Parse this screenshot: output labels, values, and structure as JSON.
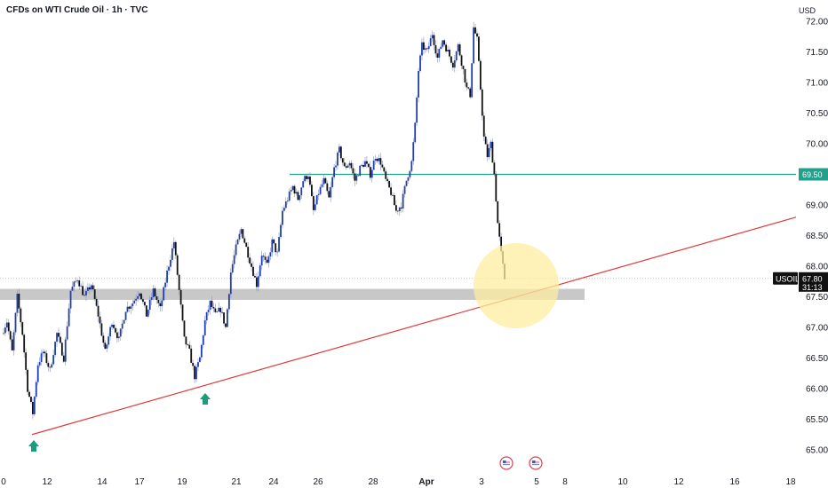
{
  "header": {
    "title": "CFDs on WTI Crude Oil · 1h · TVC",
    "currency": "USD"
  },
  "colors": {
    "candle_up": "#1f3fb0",
    "candle_down": "#111111",
    "trendline": "#e03a3a",
    "resistance": "#22a08a",
    "support_zone": "#c8c8c8",
    "highlight": "#fdeea0",
    "arrow": "#1a9d78",
    "price_tag": "#111111",
    "level_tag": "#22a08a"
  },
  "chart_data": {
    "type": "candlestick",
    "symbol": "USOIL",
    "ylim": [
      64.85,
      72.35
    ],
    "y_ticks": [
      65.0,
      65.5,
      66.0,
      66.5,
      67.0,
      67.5,
      68.0,
      68.5,
      69.0,
      69.5,
      70.0,
      70.5,
      71.0,
      71.5,
      72.0
    ],
    "x_ticks": [
      "0",
      "12",
      "14",
      "17",
      "19",
      "21",
      "24",
      "26",
      "28",
      "Apr",
      "3",
      "5",
      "8",
      "10",
      "12",
      "16",
      "18"
    ],
    "last_price": "67.80",
    "countdown": "31:13",
    "resistance_level": 69.5,
    "resistance_label": "69.50",
    "support_zone": [
      67.45,
      67.63
    ],
    "trendline": {
      "start_price": 65.25,
      "end_price": 68.8
    },
    "price_path": [
      {
        "i": 0,
        "p": 66.9
      },
      {
        "i": 3,
        "p": 67.1
      },
      {
        "i": 6,
        "p": 66.6
      },
      {
        "i": 9,
        "p": 67.5
      },
      {
        "i": 12,
        "p": 66.9
      },
      {
        "i": 15,
        "p": 66.0
      },
      {
        "i": 18,
        "p": 65.6
      },
      {
        "i": 21,
        "p": 66.4
      },
      {
        "i": 24,
        "p": 66.6
      },
      {
        "i": 28,
        "p": 66.3
      },
      {
        "i": 32,
        "p": 66.9
      },
      {
        "i": 36,
        "p": 66.5
      },
      {
        "i": 40,
        "p": 67.6
      },
      {
        "i": 44,
        "p": 67.8
      },
      {
        "i": 48,
        "p": 67.5
      },
      {
        "i": 52,
        "p": 67.7
      },
      {
        "i": 56,
        "p": 67.2
      },
      {
        "i": 60,
        "p": 66.6
      },
      {
        "i": 64,
        "p": 67.1
      },
      {
        "i": 68,
        "p": 66.8
      },
      {
        "i": 72,
        "p": 67.3
      },
      {
        "i": 76,
        "p": 67.4
      },
      {
        "i": 80,
        "p": 67.6
      },
      {
        "i": 84,
        "p": 67.2
      },
      {
        "i": 88,
        "p": 67.6
      },
      {
        "i": 92,
        "p": 67.3
      },
      {
        "i": 96,
        "p": 67.9
      },
      {
        "i": 100,
        "p": 68.4
      },
      {
        "i": 103,
        "p": 67.6
      },
      {
        "i": 106,
        "p": 66.8
      },
      {
        "i": 109,
        "p": 66.6
      },
      {
        "i": 112,
        "p": 66.2
      },
      {
        "i": 115,
        "p": 66.5
      },
      {
        "i": 118,
        "p": 67.1
      },
      {
        "i": 121,
        "p": 67.4
      },
      {
        "i": 124,
        "p": 67.2
      },
      {
        "i": 127,
        "p": 67.3
      },
      {
        "i": 130,
        "p": 67.0
      },
      {
        "i": 133,
        "p": 67.9
      },
      {
        "i": 136,
        "p": 68.3
      },
      {
        "i": 139,
        "p": 68.6
      },
      {
        "i": 142,
        "p": 68.3
      },
      {
        "i": 145,
        "p": 68.0
      },
      {
        "i": 148,
        "p": 67.7
      },
      {
        "i": 151,
        "p": 68.2
      },
      {
        "i": 154,
        "p": 68.0
      },
      {
        "i": 157,
        "p": 68.4
      },
      {
        "i": 160,
        "p": 68.2
      },
      {
        "i": 163,
        "p": 68.9
      },
      {
        "i": 166,
        "p": 69.1
      },
      {
        "i": 169,
        "p": 69.3
      },
      {
        "i": 172,
        "p": 69.1
      },
      {
        "i": 175,
        "p": 69.4
      },
      {
        "i": 178,
        "p": 69.5
      },
      {
        "i": 181,
        "p": 68.9
      },
      {
        "i": 184,
        "p": 69.2
      },
      {
        "i": 187,
        "p": 69.4
      },
      {
        "i": 190,
        "p": 69.1
      },
      {
        "i": 193,
        "p": 69.6
      },
      {
        "i": 196,
        "p": 69.9
      },
      {
        "i": 199,
        "p": 69.6
      },
      {
        "i": 202,
        "p": 69.7
      },
      {
        "i": 205,
        "p": 69.4
      },
      {
        "i": 208,
        "p": 69.6
      },
      {
        "i": 211,
        "p": 69.7
      },
      {
        "i": 214,
        "p": 69.5
      },
      {
        "i": 217,
        "p": 69.8
      },
      {
        "i": 220,
        "p": 69.7
      },
      {
        "i": 223,
        "p": 69.4
      },
      {
        "i": 226,
        "p": 69.2
      },
      {
        "i": 229,
        "p": 68.9
      },
      {
        "i": 232,
        "p": 69.0
      },
      {
        "i": 235,
        "p": 69.4
      },
      {
        "i": 238,
        "p": 69.7
      },
      {
        "i": 240,
        "p": 70.3
      },
      {
        "i": 242,
        "p": 71.2
      },
      {
        "i": 244,
        "p": 71.6
      },
      {
        "i": 247,
        "p": 71.5
      },
      {
        "i": 250,
        "p": 71.8
      },
      {
        "i": 253,
        "p": 71.4
      },
      {
        "i": 256,
        "p": 71.7
      },
      {
        "i": 259,
        "p": 71.5
      },
      {
        "i": 262,
        "p": 71.3
      },
      {
        "i": 265,
        "p": 71.6
      },
      {
        "i": 268,
        "p": 71.2
      },
      {
        "i": 270,
        "p": 70.9
      },
      {
        "i": 272,
        "p": 70.8
      },
      {
        "i": 274,
        "p": 71.9
      },
      {
        "i": 276,
        "p": 71.7
      },
      {
        "i": 278,
        "p": 70.9
      },
      {
        "i": 280,
        "p": 70.1
      },
      {
        "i": 282,
        "p": 69.8
      },
      {
        "i": 284,
        "p": 70.0
      },
      {
        "i": 286,
        "p": 69.5
      },
      {
        "i": 288,
        "p": 68.7
      },
      {
        "i": 290,
        "p": 68.2
      },
      {
        "i": 292,
        "p": 67.8
      }
    ]
  }
}
